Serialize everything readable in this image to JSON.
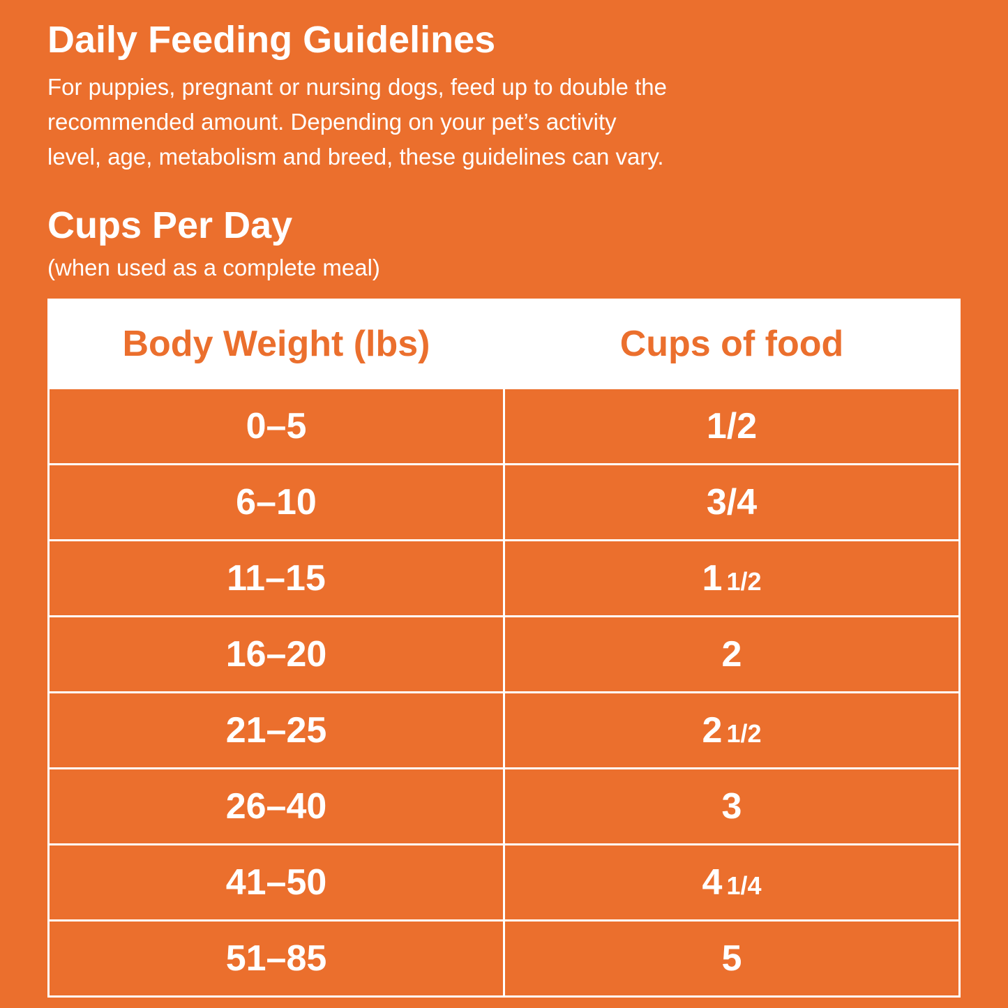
{
  "header": {
    "title": "Daily Feeding Guidelines",
    "description": [
      "For puppies, pregnant or nursing dogs, feed up to double the",
      "recommended amount. Depending on your pet’s activity",
      "level, age, metabolism and breed, these guidelines can vary."
    ]
  },
  "section": {
    "title": "Cups Per Day",
    "note": "(when used as a complete meal)"
  },
  "table": {
    "columns": [
      "Body Weight (lbs)",
      "Cups of food"
    ],
    "rows": [
      {
        "weight": "0–5",
        "cups": "1/2"
      },
      {
        "weight": "6–10",
        "cups": "3/4"
      },
      {
        "weight": "11–15",
        "cups": "1",
        "cups_fraction": "1/2"
      },
      {
        "weight": "16–20",
        "cups": "2"
      },
      {
        "weight": "21–25",
        "cups": "2",
        "cups_fraction": "1/2"
      },
      {
        "weight": "26–40",
        "cups": "3"
      },
      {
        "weight": "41–50",
        "cups": "4",
        "cups_fraction": "1/4"
      },
      {
        "weight": "51–85",
        "cups": "5"
      }
    ]
  }
}
